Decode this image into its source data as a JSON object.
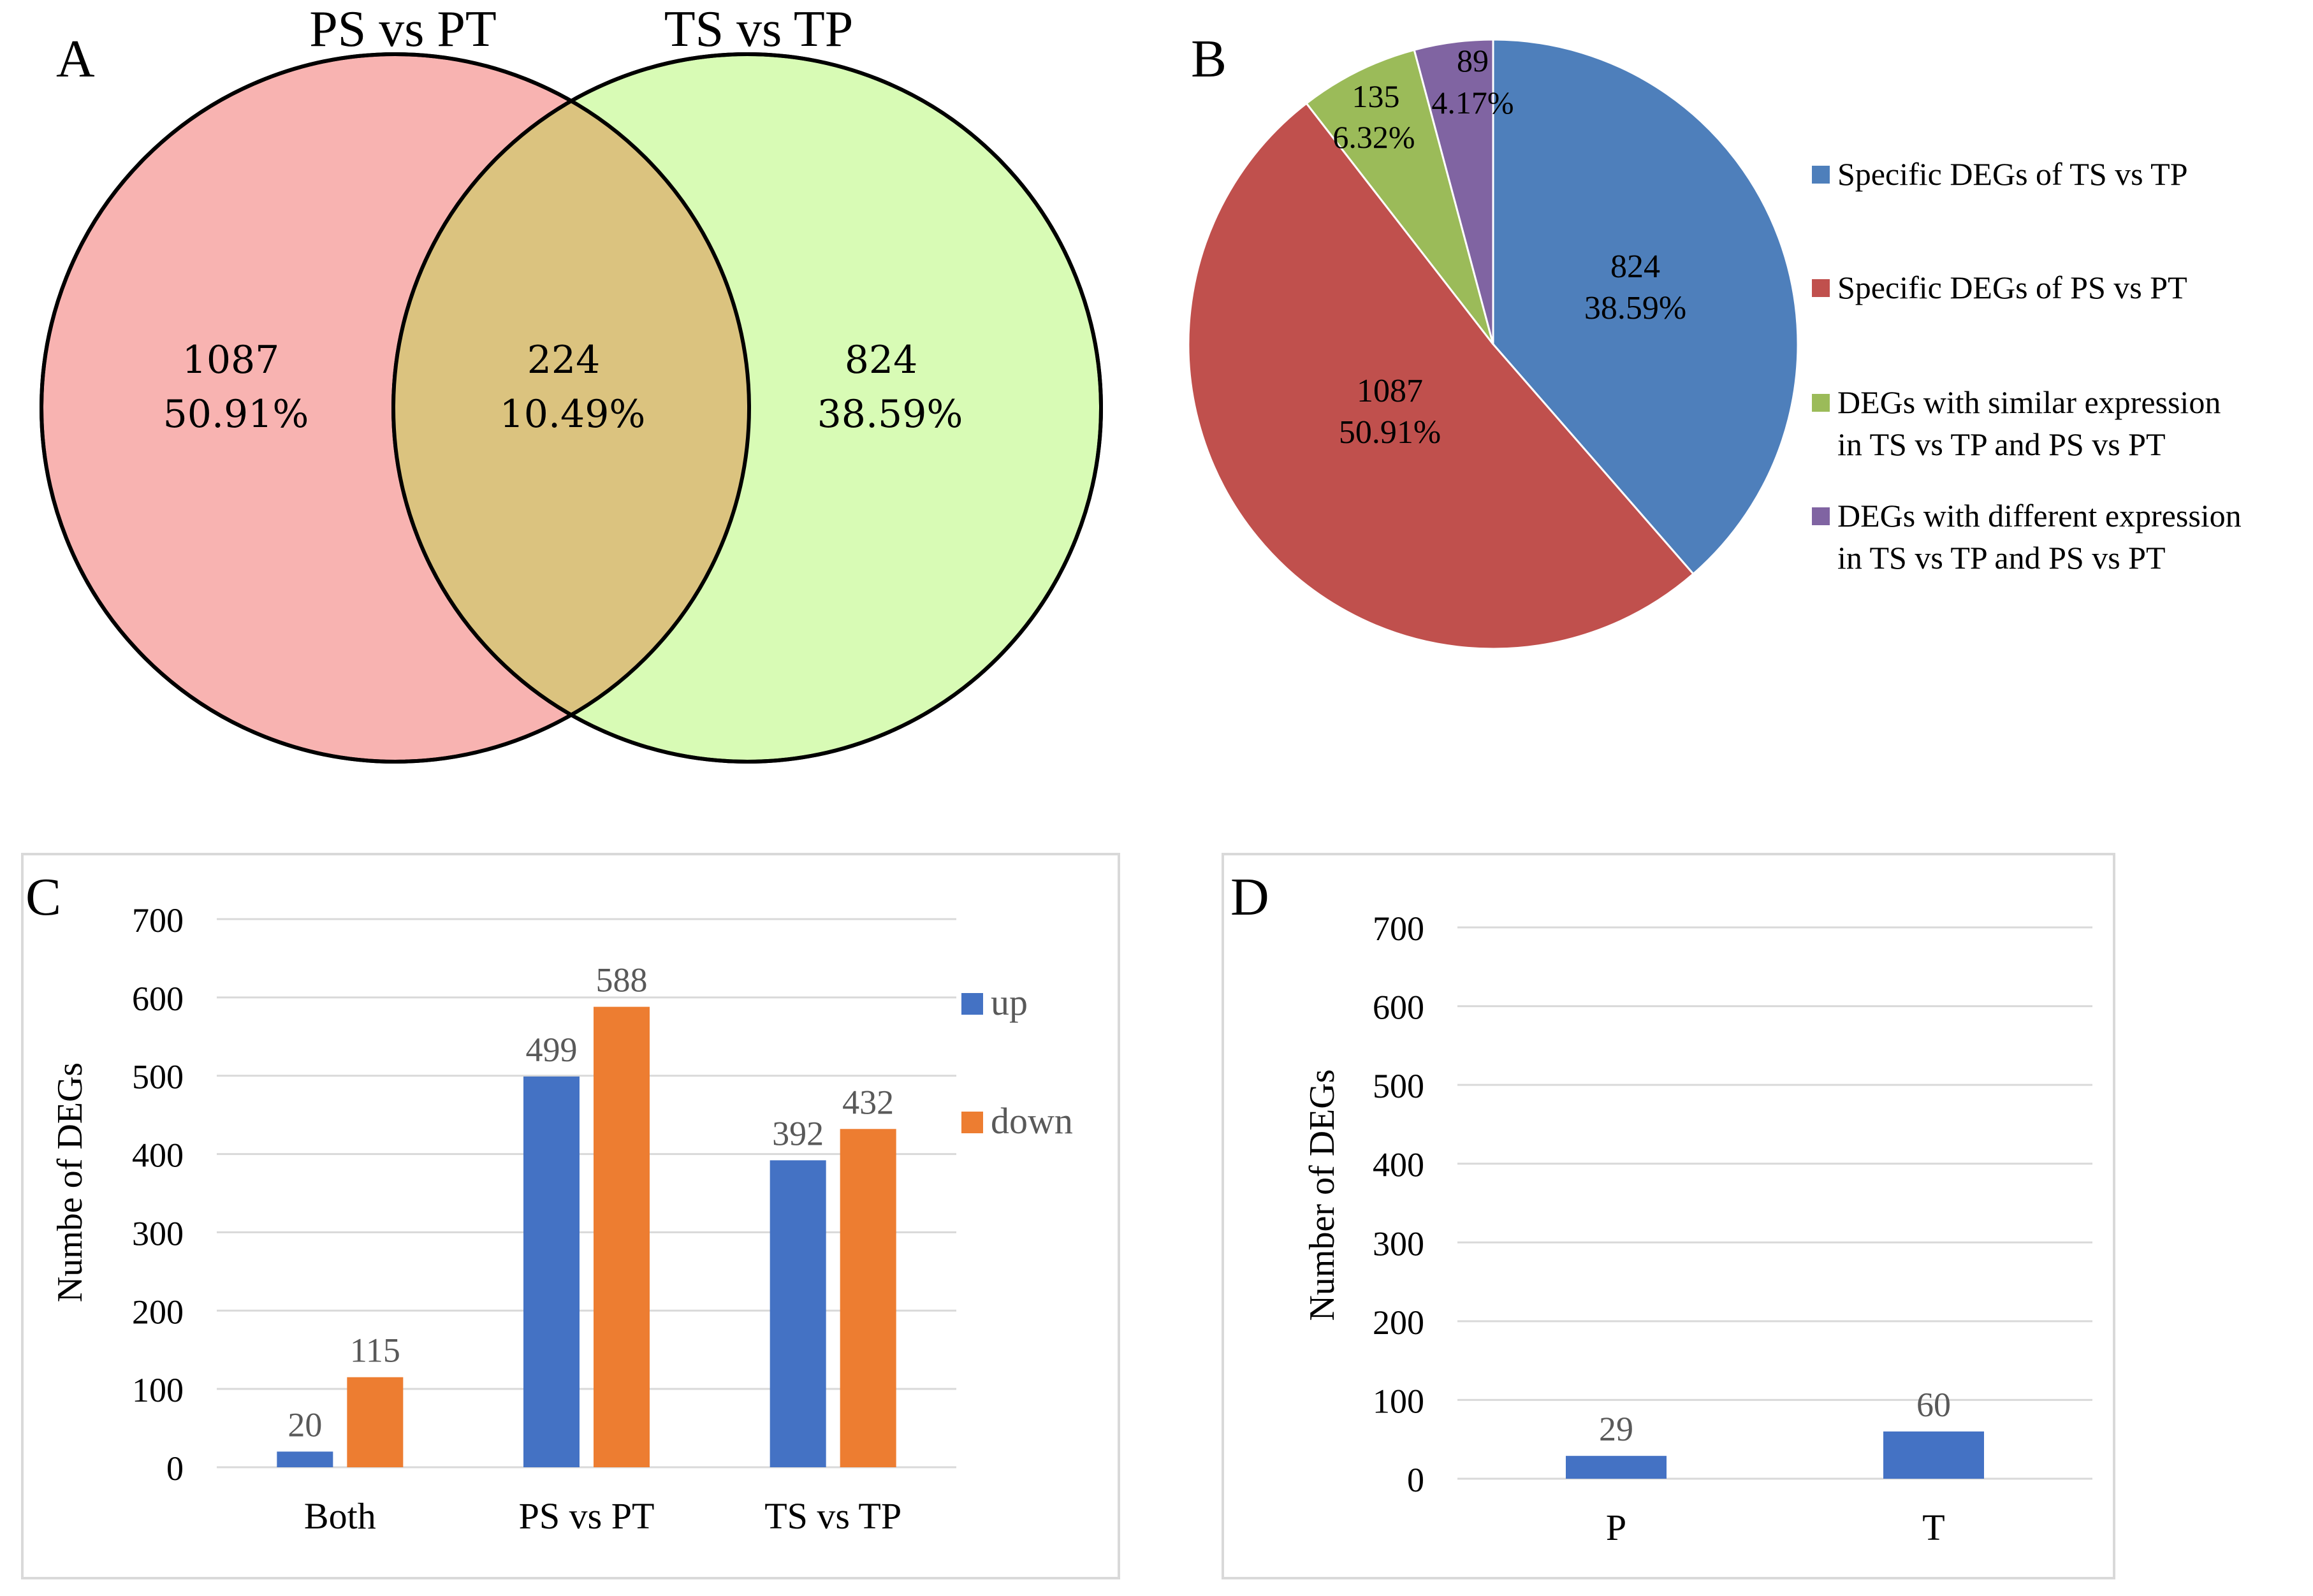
{
  "panels": {
    "a": "A",
    "b": "B",
    "c": "C",
    "d": "D"
  },
  "colors": {
    "venn_left": "#f8b3b1",
    "venn_right": "#d8fbb5",
    "venn_overlap": "#dbc37f",
    "blue": "#4e7fbb",
    "red": "#c0504d",
    "green": "#9bbb59",
    "purple": "#8064a2",
    "bar_up": "#4472c4",
    "bar_down": "#ed7d31",
    "grid": "#d9d9d9"
  },
  "chart_data": [
    {
      "type": "venn",
      "sets": [
        "PS vs PT",
        "TS vs TP"
      ],
      "regions": [
        {
          "name": "left-only",
          "count": "1087",
          "percent": "50.91%"
        },
        {
          "name": "overlap",
          "count": "224",
          "percent": "10.49%"
        },
        {
          "name": "right-only",
          "count": "824",
          "percent": "38.59%"
        }
      ]
    },
    {
      "type": "pie",
      "slices": [
        {
          "label": "Specific DEGs of TS vs TP",
          "value": 824,
          "count": "824",
          "percent": "38.59%",
          "color": "#4e7fbb"
        },
        {
          "label": "Specific DEGs of PS vs PT",
          "value": 1087,
          "count": "1087",
          "percent": "50.91%",
          "color": "#c0504d"
        },
        {
          "label": "DEGs with similar expression in TS vs TP and PS vs PT",
          "value": 135,
          "count": "135",
          "percent": "6.32%",
          "color": "#9bbb59"
        },
        {
          "label": "DEGs with different expression in TS vs TP and PS vs PT",
          "value": 89,
          "count": "89",
          "percent": "4.17%",
          "color": "#8064a2"
        }
      ],
      "legend": [
        {
          "lines": [
            "Specific DEGs of TS vs TP"
          ],
          "color": "#4e7fbb"
        },
        {
          "lines": [
            "Specific DEGs of PS vs PT"
          ],
          "color": "#c0504d"
        },
        {
          "lines": [
            "DEGs with similar expression",
            "in TS vs TP and PS vs PT"
          ],
          "color": "#9bbb59"
        },
        {
          "lines": [
            "DEGs with different expression",
            "in TS vs TP and PS vs PT"
          ],
          "color": "#8064a2"
        }
      ]
    },
    {
      "type": "bar",
      "categories": [
        "Both",
        "PS vs PT",
        "TS vs TP"
      ],
      "series": [
        {
          "name": "up",
          "values": [
            20,
            499,
            392
          ],
          "color": "#4472c4"
        },
        {
          "name": "down",
          "values": [
            115,
            588,
            432
          ],
          "color": "#ed7d31"
        }
      ],
      "ylabel": "Numbe of DEGs",
      "ylim": [
        0,
        700
      ],
      "yticks": [
        0,
        100,
        200,
        300,
        400,
        500,
        600,
        700
      ],
      "grid": true,
      "legend_position": "right"
    },
    {
      "type": "bar",
      "categories": [
        "P",
        "T"
      ],
      "series": [
        {
          "name": "",
          "values": [
            29,
            60
          ],
          "color": "#4472c4"
        }
      ],
      "ylabel": "Number of DEGs",
      "ylim": [
        0,
        700
      ],
      "yticks": [
        0,
        100,
        200,
        300,
        400,
        500,
        600,
        700
      ],
      "grid": true
    }
  ]
}
